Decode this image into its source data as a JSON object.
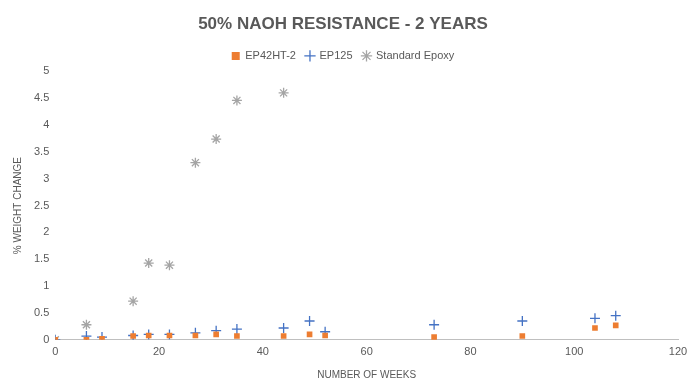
{
  "chart_data": {
    "type": "scatter",
    "title": "50% NAOH RESISTANCE - 2 YEARS",
    "x_label": "NUMBER OF WEEKS",
    "y_label": "% WEIGHT CHANGE",
    "xlim": [
      0,
      120
    ],
    "xticks": [
      0,
      20,
      40,
      60,
      80,
      100,
      120
    ],
    "ylim": [
      0,
      5
    ],
    "yticks": [
      0,
      0.5,
      1,
      1.5,
      2,
      2.5,
      3,
      3.5,
      4,
      4.5,
      5
    ],
    "grid": false,
    "legend": "top",
    "series": [
      {
        "name": "EP42HT-2",
        "color": "#ed7d31",
        "marker": "square",
        "x": [
          0,
          6,
          9,
          15,
          18,
          22,
          27,
          31,
          35,
          44,
          49,
          52,
          73,
          90,
          104,
          108
        ],
        "values": [
          0,
          0,
          0.02,
          0.07,
          0.08,
          0.08,
          0.08,
          0.1,
          0.07,
          0.07,
          0.1,
          0.08,
          0.05,
          0.07,
          0.22,
          0.27
        ]
      },
      {
        "name": "EP125",
        "color": "#4472c4",
        "marker": "cross",
        "x": [
          0,
          6,
          9,
          15,
          18,
          22,
          27,
          31,
          35,
          44,
          49,
          52,
          73,
          90,
          104,
          108
        ],
        "values": [
          0,
          0.07,
          0.05,
          0.08,
          0.1,
          0.1,
          0.13,
          0.17,
          0.2,
          0.22,
          0.35,
          0.15,
          0.28,
          0.35,
          0.4,
          0.45
        ]
      },
      {
        "name": "Standard Epoxy",
        "color": "#a5a5a5",
        "marker": "star",
        "x": [
          0,
          6,
          15,
          18,
          22,
          27,
          31,
          35,
          44
        ],
        "values": [
          0,
          0.28,
          0.72,
          1.43,
          1.39,
          3.3,
          3.74,
          4.46,
          4.6
        ]
      }
    ]
  }
}
